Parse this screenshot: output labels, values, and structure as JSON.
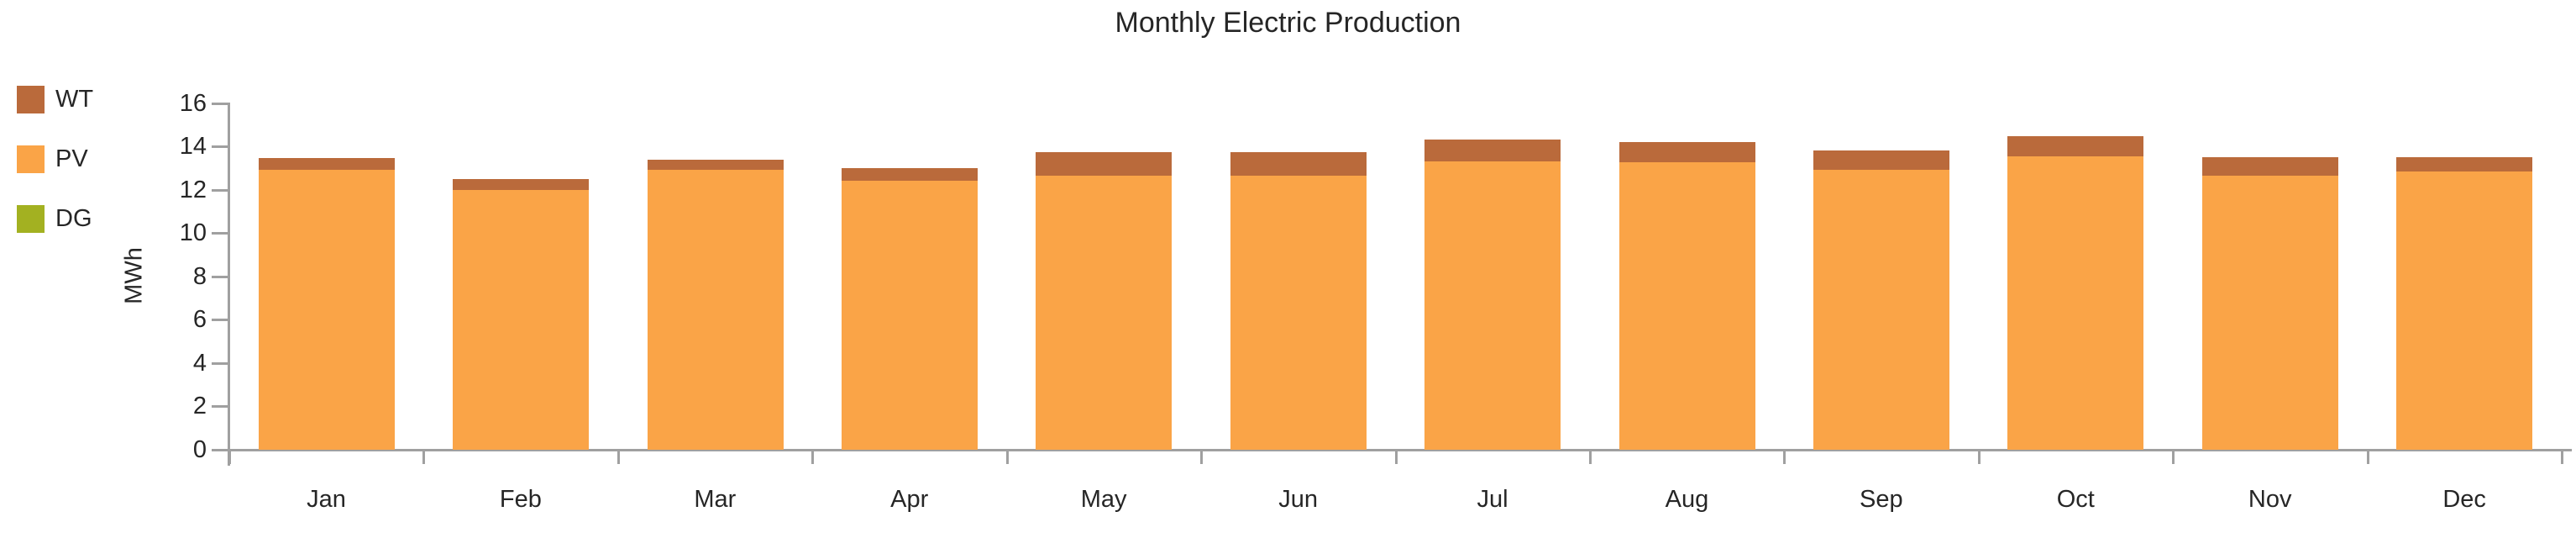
{
  "chart_data": {
    "type": "bar",
    "stacked": true,
    "title": "Monthly Electric Production",
    "ylabel": "MWh",
    "ylim": [
      0,
      16
    ],
    "ytick_step": 2,
    "yticks": [
      0,
      2,
      4,
      6,
      8,
      10,
      12,
      14,
      16
    ],
    "grid": false,
    "legend_position": "left",
    "categories": [
      "Jan",
      "Feb",
      "Mar",
      "Apr",
      "May",
      "Jun",
      "Jul",
      "Aug",
      "Sep",
      "Oct",
      "Nov",
      "Dec"
    ],
    "series": [
      {
        "name": "WT",
        "color": "#BA6A3B",
        "values": [
          0.55,
          0.5,
          0.5,
          0.6,
          1.1,
          1.1,
          1.0,
          0.95,
          0.9,
          0.9,
          0.85,
          0.65
        ]
      },
      {
        "name": "PV",
        "color": "#FAA447",
        "values": [
          12.9,
          12.0,
          12.9,
          12.4,
          12.65,
          12.65,
          13.3,
          13.25,
          12.9,
          13.55,
          12.65,
          12.85
        ]
      },
      {
        "name": "DG",
        "color": "#A3B121",
        "values": [
          0,
          0,
          0,
          0,
          0,
          0,
          0,
          0,
          0,
          0,
          0,
          0
        ]
      }
    ],
    "axis_color": "#A0A0A0",
    "text_color": "#262626",
    "background_color": "#FFFFFF"
  }
}
